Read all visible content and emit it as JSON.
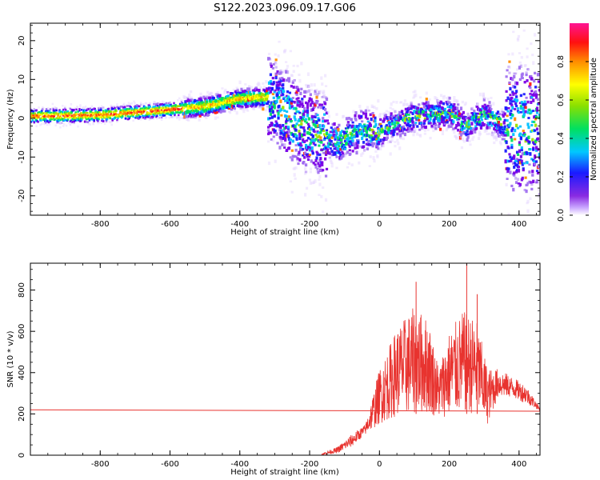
{
  "title": "S122.2023.096.09.17.G06",
  "chart_data": [
    {
      "type": "heatmap",
      "xlabel": "Height of straight line (km)",
      "ylabel": "Frequency (Hz)",
      "xlim": [
        -1000,
        460
      ],
      "ylim": [
        -25,
        24.5
      ],
      "xticks": [
        -800,
        -600,
        -400,
        -200,
        0,
        200,
        400
      ],
      "yticks": [
        -20,
        -10,
        0,
        10,
        20
      ],
      "colorbar": {
        "label": "Normalized spectral amplitude",
        "range": [
          0,
          1
        ],
        "ticks": [
          "0.0",
          "0.2",
          "0.4",
          "0.6",
          "0.8"
        ],
        "tick_values": [
          0,
          0.2,
          0.4,
          0.6,
          0.8
        ],
        "colormap": "rainbow (purple-blue-cyan-green-yellow-red-magenta)"
      },
      "ridge_frequency": [
        {
          "x": -1000,
          "y": 0.5
        },
        {
          "x": -800,
          "y": 0.8
        },
        {
          "x": -600,
          "y": 2.2
        },
        {
          "x": -500,
          "y": 3.0
        },
        {
          "x": -400,
          "y": 5.0
        },
        {
          "x": -320,
          "y": 5.5
        },
        {
          "x": -220,
          "y": -2.5
        },
        {
          "x": -120,
          "y": -6.0
        },
        {
          "x": -50,
          "y": -3.0
        },
        {
          "x": 0,
          "y": -3.5
        },
        {
          "x": 100,
          "y": 0.5
        },
        {
          "x": 200,
          "y": 1.5
        },
        {
          "x": 250,
          "y": -2.0
        },
        {
          "x": 300,
          "y": 1.0
        },
        {
          "x": 380,
          "y": -3.0
        }
      ]
    },
    {
      "type": "line",
      "xlabel": "Height of straight line (km)",
      "ylabel": "SNR (10 * v/v)",
      "xlim": [
        -1000,
        460
      ],
      "ylim": [
        0,
        930
      ],
      "xticks": [
        -800,
        -600,
        -400,
        -200,
        0,
        200,
        400
      ],
      "yticks": [
        0,
        200,
        400,
        600,
        800
      ],
      "series": [
        {
          "type": "reference_line",
          "color": "#e8332f",
          "x": [
            -1000,
            460
          ],
          "y": [
            220,
            213
          ]
        },
        {
          "type": "noisy_signal",
          "color": "#e8332f",
          "envelope_x": [
            -165,
            -120,
            -80,
            -40,
            0,
            50,
            100,
            140,
            170,
            200,
            240,
            280,
            310,
            340,
            380,
            420,
            460
          ],
          "envelope_low": [
            0,
            10,
            40,
            100,
            150,
            190,
            200,
            200,
            180,
            190,
            200,
            200,
            150,
            280,
            280,
            250,
            215
          ],
          "envelope_high": [
            10,
            40,
            100,
            150,
            420,
            620,
            720,
            660,
            430,
            600,
            700,
            650,
            420,
            420,
            380,
            340,
            230
          ],
          "peaks": [
            {
              "x": 105,
              "y": 840
            },
            {
              "x": 250,
              "y": 930
            },
            {
              "x": 280,
              "y": 780
            }
          ]
        }
      ]
    }
  ]
}
